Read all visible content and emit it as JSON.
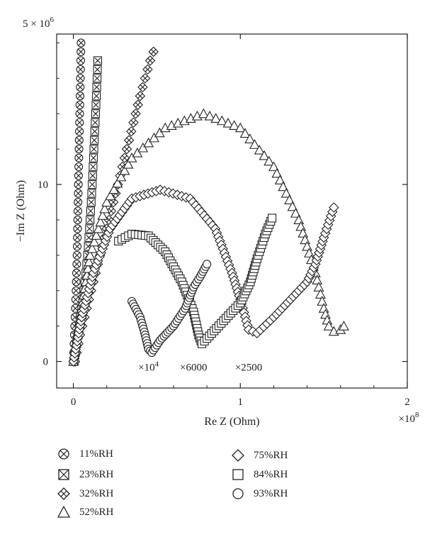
{
  "chart_data": {
    "type": "scatter",
    "title": "",
    "xlabel": "Re Z (Ohm)",
    "ylabel": "−Im Z (Ohm)",
    "x_scale_label": "×10^8",
    "y_scale_label": "5 × 10^6",
    "xlim": [
      -0.1,
      2.0
    ],
    "ylim": [
      -1.5,
      18.5
    ],
    "x_ticks": [
      0,
      1,
      2
    ],
    "y_ticks": [
      0,
      10
    ],
    "y_tick_labels": [
      "0",
      "10"
    ],
    "x_tick_labels": [
      "0",
      "1",
      "2"
    ],
    "annotations": [
      {
        "text": "×10",
        "sup": "4",
        "x": 0.45,
        "y": -0.2
      },
      {
        "text": "×6000",
        "x": 0.72,
        "y": -0.2
      },
      {
        "text": "×2500",
        "x": 1.05,
        "y": -0.2
      }
    ],
    "series": [
      {
        "name": "11%RH",
        "marker": "circle-x",
        "points": [
          [
            0.0,
            0.0
          ],
          [
            0.004,
            1.0
          ],
          [
            0.008,
            2.0
          ],
          [
            0.012,
            3.0
          ],
          [
            0.016,
            4.0
          ],
          [
            0.019,
            5.0
          ],
          [
            0.022,
            6.0
          ],
          [
            0.024,
            7.0
          ],
          [
            0.026,
            8.0
          ],
          [
            0.028,
            9.0
          ],
          [
            0.03,
            10.0
          ],
          [
            0.032,
            11.0
          ],
          [
            0.034,
            12.0
          ],
          [
            0.036,
            13.0
          ],
          [
            0.038,
            14.0
          ],
          [
            0.04,
            15.0
          ],
          [
            0.042,
            16.0
          ],
          [
            0.044,
            17.0
          ],
          [
            0.046,
            18.0
          ]
        ]
      },
      {
        "name": "23%RH",
        "marker": "square-x",
        "points": [
          [
            0.005,
            0.0
          ],
          [
            0.02,
            1.0
          ],
          [
            0.035,
            2.0
          ],
          [
            0.05,
            3.0
          ],
          [
            0.063,
            4.0
          ],
          [
            0.075,
            5.0
          ],
          [
            0.085,
            6.0
          ],
          [
            0.093,
            7.0
          ],
          [
            0.1,
            8.0
          ],
          [
            0.107,
            9.0
          ],
          [
            0.113,
            10.0
          ],
          [
            0.118,
            11.0
          ],
          [
            0.123,
            12.0
          ],
          [
            0.128,
            13.0
          ],
          [
            0.133,
            14.0
          ],
          [
            0.138,
            15.0
          ],
          [
            0.142,
            16.0
          ],
          [
            0.146,
            17.0
          ]
        ]
      },
      {
        "name": "32%RH",
        "marker": "diamond-x",
        "points": [
          [
            0.01,
            0.0
          ],
          [
            0.04,
            1.5
          ],
          [
            0.08,
            3.0
          ],
          [
            0.12,
            4.5
          ],
          [
            0.16,
            6.0
          ],
          [
            0.2,
            7.5
          ],
          [
            0.24,
            9.0
          ],
          [
            0.28,
            10.5
          ],
          [
            0.32,
            12.0
          ],
          [
            0.36,
            13.5
          ],
          [
            0.4,
            15.0
          ],
          [
            0.43,
            16.0
          ],
          [
            0.46,
            17.0
          ],
          [
            0.48,
            17.5
          ]
        ]
      },
      {
        "name": "52%RH",
        "marker": "triangle",
        "points": [
          [
            0.0,
            0.0
          ],
          [
            0.05,
            3.0
          ],
          [
            0.1,
            6.0
          ],
          [
            0.2,
            9.0
          ],
          [
            0.35,
            11.5
          ],
          [
            0.55,
            13.2
          ],
          [
            0.78,
            14.0
          ],
          [
            1.0,
            13.2
          ],
          [
            1.2,
            11.0
          ],
          [
            1.35,
            8.0
          ],
          [
            1.45,
            5.0
          ],
          [
            1.5,
            3.0
          ],
          [
            1.53,
            2.0
          ],
          [
            1.56,
            1.7
          ],
          [
            1.6,
            1.8
          ],
          [
            1.62,
            2.0
          ]
        ]
      },
      {
        "name": "75%RH",
        "marker": "diamond",
        "points": [
          [
            0.0,
            0.0
          ],
          [
            0.05,
            2.5
          ],
          [
            0.12,
            5.0
          ],
          [
            0.22,
            7.5
          ],
          [
            0.35,
            9.2
          ],
          [
            0.52,
            9.7
          ],
          [
            0.7,
            9.2
          ],
          [
            0.85,
            7.5
          ],
          [
            0.95,
            5.0
          ],
          [
            1.0,
            3.5
          ],
          [
            1.05,
            1.8
          ],
          [
            1.1,
            1.6
          ],
          [
            1.2,
            2.5
          ],
          [
            1.3,
            3.5
          ],
          [
            1.4,
            4.5
          ],
          [
            1.45,
            5.5
          ],
          [
            1.5,
            7.0
          ],
          [
            1.56,
            8.7
          ]
        ]
      },
      {
        "name": "84%RH",
        "marker": "square",
        "points": [
          [
            0.27,
            6.8
          ],
          [
            0.35,
            7.2
          ],
          [
            0.45,
            7.1
          ],
          [
            0.55,
            6.2
          ],
          [
            0.65,
            4.5
          ],
          [
            0.72,
            2.8
          ],
          [
            0.75,
            1.5
          ],
          [
            0.77,
            1.0
          ],
          [
            0.8,
            1.3
          ],
          [
            0.9,
            2.3
          ],
          [
            1.0,
            3.3
          ],
          [
            1.06,
            4.5
          ],
          [
            1.1,
            5.8
          ],
          [
            1.15,
            7.2
          ],
          [
            1.19,
            8.1
          ]
        ]
      },
      {
        "name": "93%RH",
        "marker": "circle",
        "points": [
          [
            0.35,
            3.4
          ],
          [
            0.4,
            2.5
          ],
          [
            0.43,
            1.5
          ],
          [
            0.45,
            0.7
          ],
          [
            0.47,
            0.5
          ],
          [
            0.52,
            1.2
          ],
          [
            0.6,
            2.0
          ],
          [
            0.67,
            3.0
          ],
          [
            0.72,
            4.2
          ],
          [
            0.76,
            4.8
          ],
          [
            0.8,
            5.5
          ]
        ]
      }
    ],
    "legend_placement": "bottom",
    "grid": false
  }
}
